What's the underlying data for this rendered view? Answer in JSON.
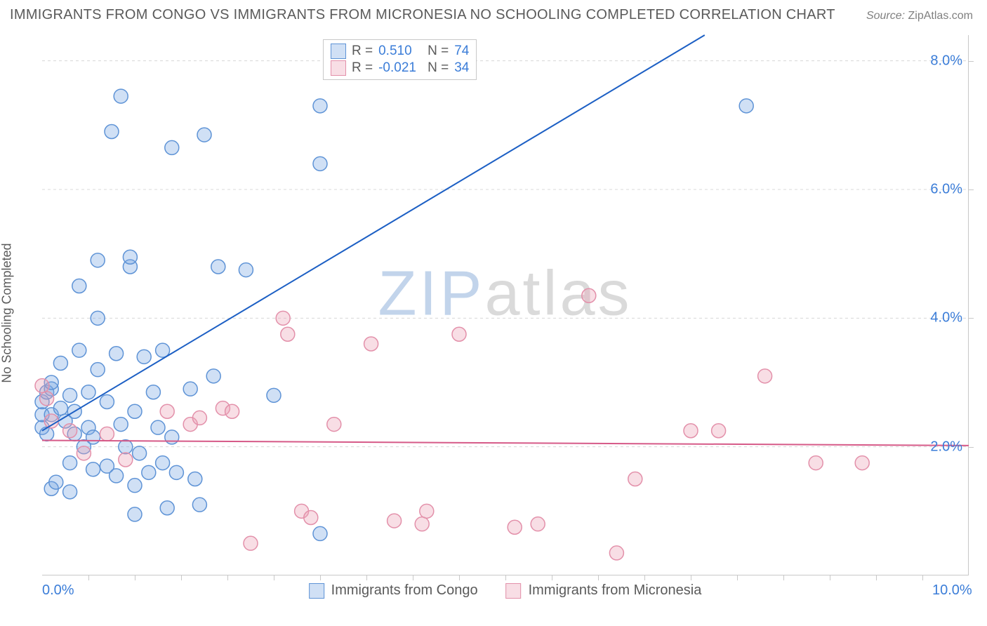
{
  "title": "IMMIGRANTS FROM CONGO VS IMMIGRANTS FROM MICRONESIA NO SCHOOLING COMPLETED CORRELATION CHART",
  "source_label": "Source:",
  "source_value": "ZipAtlas.com",
  "ylabel": "No Schooling Completed",
  "watermark_a": "ZIP",
  "watermark_b": "atlas",
  "chart": {
    "type": "scatter",
    "xlim": [
      0,
      10
    ],
    "ylim": [
      0,
      8.4
    ],
    "x_ticks": [
      0,
      10
    ],
    "x_tick_labels": [
      "0.0%",
      "10.0%"
    ],
    "x_minor_ticks": [
      0.5,
      1,
      1.5,
      2,
      2.5,
      3,
      3.5,
      4,
      4.5,
      5,
      5.5,
      6,
      6.5,
      7,
      7.5,
      8,
      8.5,
      9,
      9.5
    ],
    "y_ticks": [
      2,
      4,
      6,
      8
    ],
    "y_tick_labels": [
      "2.0%",
      "4.0%",
      "6.0%",
      "8.0%"
    ],
    "grid_color": "#d8d8d8",
    "background_color": "#ffffff",
    "marker_radius": 10,
    "marker_stroke_width": 1.5,
    "line_width": 2,
    "series": [
      {
        "name": "Immigrants from Congo",
        "fill": "rgba(120,165,225,0.35)",
        "stroke": "#5e93d6",
        "line_color": "#1c5fc4",
        "r_value": "0.510",
        "n_value": "74",
        "trend": {
          "x1": 0,
          "y1": 2.25,
          "x2": 7.15,
          "y2": 8.4
        },
        "points": [
          [
            0.0,
            2.3
          ],
          [
            0.0,
            2.5
          ],
          [
            0.0,
            2.7
          ],
          [
            0.05,
            2.85
          ],
          [
            0.05,
            2.2
          ],
          [
            0.1,
            2.5
          ],
          [
            0.1,
            2.9
          ],
          [
            0.1,
            3.0
          ],
          [
            0.1,
            1.35
          ],
          [
            0.15,
            1.45
          ],
          [
            0.2,
            2.6
          ],
          [
            0.2,
            3.3
          ],
          [
            0.25,
            2.4
          ],
          [
            0.3,
            1.75
          ],
          [
            0.3,
            1.3
          ],
          [
            0.3,
            2.8
          ],
          [
            0.35,
            2.2
          ],
          [
            0.35,
            2.55
          ],
          [
            0.4,
            3.5
          ],
          [
            0.4,
            4.5
          ],
          [
            0.45,
            2.0
          ],
          [
            0.5,
            2.3
          ],
          [
            0.5,
            2.85
          ],
          [
            0.55,
            1.65
          ],
          [
            0.55,
            2.15
          ],
          [
            0.6,
            4.0
          ],
          [
            0.6,
            4.9
          ],
          [
            0.6,
            3.2
          ],
          [
            0.7,
            2.7
          ],
          [
            0.7,
            1.7
          ],
          [
            0.75,
            6.9
          ],
          [
            0.8,
            3.45
          ],
          [
            0.8,
            1.55
          ],
          [
            0.85,
            2.35
          ],
          [
            0.85,
            7.45
          ],
          [
            0.9,
            2.0
          ],
          [
            0.95,
            4.8
          ],
          [
            0.95,
            4.95
          ],
          [
            1.0,
            1.4
          ],
          [
            1.0,
            2.55
          ],
          [
            1.0,
            0.95
          ],
          [
            1.05,
            1.9
          ],
          [
            1.1,
            3.4
          ],
          [
            1.15,
            1.6
          ],
          [
            1.2,
            2.85
          ],
          [
            1.25,
            2.3
          ],
          [
            1.3,
            1.75
          ],
          [
            1.3,
            3.5
          ],
          [
            1.35,
            1.05
          ],
          [
            1.4,
            2.15
          ],
          [
            1.4,
            6.65
          ],
          [
            1.45,
            1.6
          ],
          [
            1.6,
            2.9
          ],
          [
            1.65,
            1.5
          ],
          [
            1.7,
            1.1
          ],
          [
            1.75,
            6.85
          ],
          [
            1.85,
            3.1
          ],
          [
            1.9,
            4.8
          ],
          [
            2.2,
            4.75
          ],
          [
            2.5,
            2.8
          ],
          [
            3.0,
            7.3
          ],
          [
            3.0,
            6.4
          ],
          [
            3.0,
            0.65
          ],
          [
            7.6,
            7.3
          ]
        ]
      },
      {
        "name": "Immigrants from Micronesia",
        "fill": "rgba(235,160,180,0.35)",
        "stroke": "#e390aa",
        "line_color": "#d65a88",
        "r_value": "-0.021",
        "n_value": "34",
        "trend": {
          "x1": 0,
          "y1": 2.1,
          "x2": 10,
          "y2": 2.02
        },
        "points": [
          [
            0.0,
            2.95
          ],
          [
            0.05,
            2.75
          ],
          [
            0.1,
            2.4
          ],
          [
            0.3,
            2.25
          ],
          [
            0.45,
            1.9
          ],
          [
            0.7,
            2.2
          ],
          [
            0.9,
            1.8
          ],
          [
            1.35,
            2.55
          ],
          [
            1.6,
            2.35
          ],
          [
            1.7,
            2.45
          ],
          [
            1.95,
            2.6
          ],
          [
            2.05,
            2.55
          ],
          [
            2.25,
            0.5
          ],
          [
            2.6,
            4.0
          ],
          [
            2.65,
            3.75
          ],
          [
            2.8,
            1.0
          ],
          [
            2.9,
            0.9
          ],
          [
            3.15,
            2.35
          ],
          [
            3.55,
            3.6
          ],
          [
            3.8,
            0.85
          ],
          [
            4.1,
            0.8
          ],
          [
            4.15,
            1.0
          ],
          [
            4.5,
            3.75
          ],
          [
            5.1,
            0.75
          ],
          [
            5.35,
            0.8
          ],
          [
            5.9,
            4.35
          ],
          [
            6.2,
            0.35
          ],
          [
            6.4,
            1.5
          ],
          [
            7.0,
            2.25
          ],
          [
            7.3,
            2.25
          ],
          [
            7.8,
            3.1
          ],
          [
            8.35,
            1.75
          ],
          [
            8.85,
            1.75
          ]
        ]
      }
    ]
  },
  "legend_top": {
    "r_label": "R =",
    "n_label": "N ="
  },
  "legend_bottom": [
    "Immigrants from Congo",
    "Immigrants from Micronesia"
  ]
}
